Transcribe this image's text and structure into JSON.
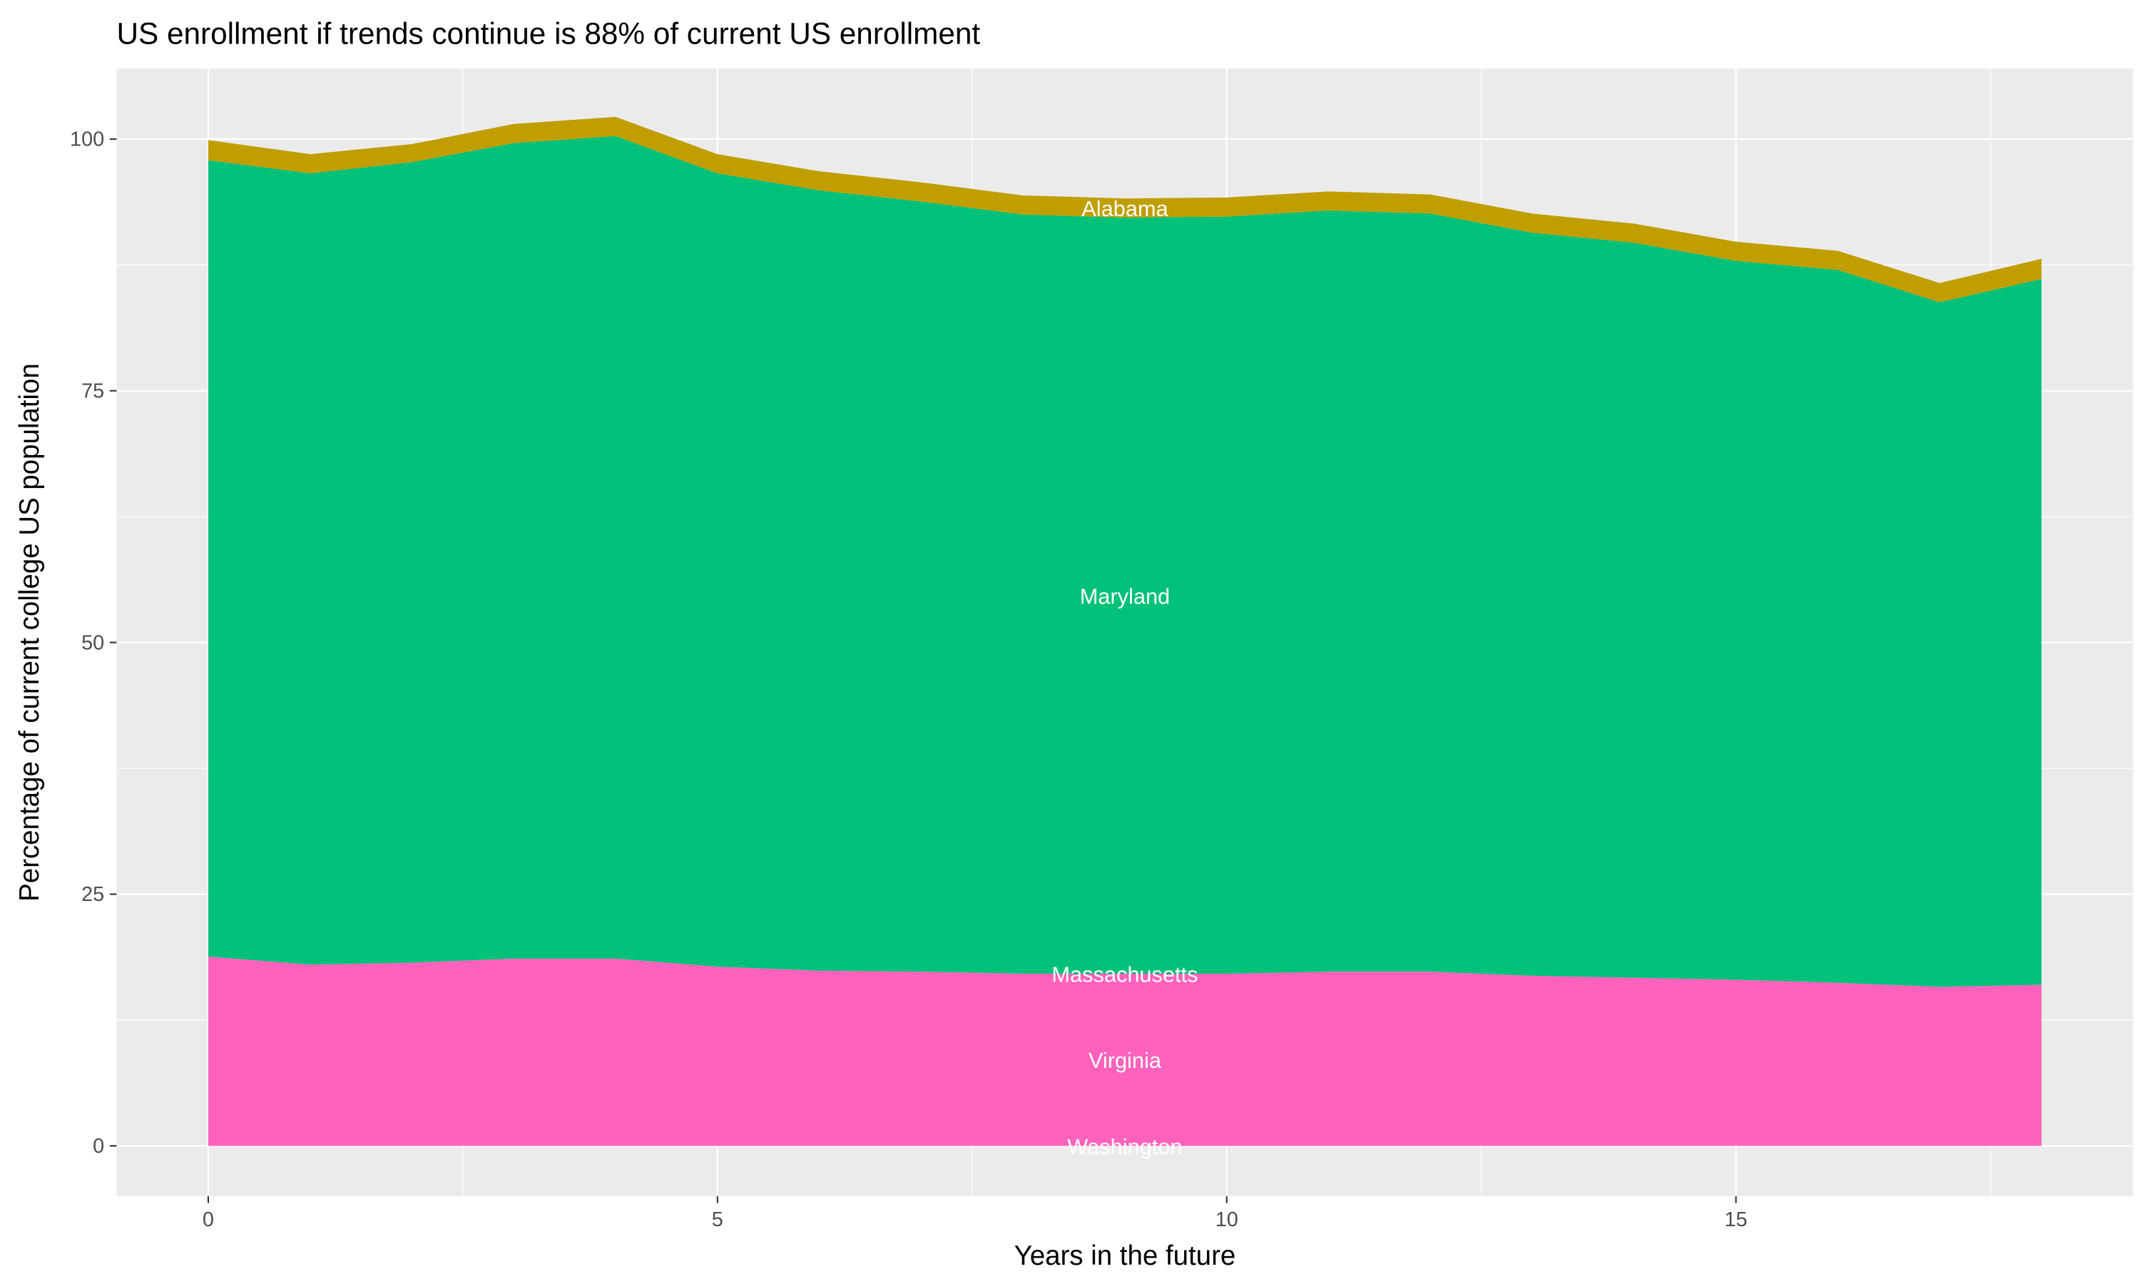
{
  "chart_data": {
    "type": "area",
    "stacked": true,
    "title": "US enrollment if trends continue is 88% of current US enrollment",
    "xlabel": "Years in the future",
    "ylabel": "Percentage of current college US population",
    "x": [
      0,
      1,
      2,
      3,
      4,
      5,
      6,
      7,
      8,
      9,
      10,
      11,
      12,
      13,
      14,
      15,
      16,
      17,
      18
    ],
    "xlim": [
      -0.9,
      18.9
    ],
    "ylim": [
      -5,
      107
    ],
    "xticks": [
      0,
      5,
      10,
      15
    ],
    "yticks": [
      0,
      25,
      50,
      75,
      100
    ],
    "grid": true,
    "legend": "none (labels placed inside areas)",
    "label_x": 9,
    "series": [
      {
        "name": "Washington",
        "color": "#FF62BC",
        "values": [
          0,
          0,
          0,
          0,
          0,
          0,
          0,
          0,
          0,
          0,
          0,
          0,
          0,
          0,
          0,
          0,
          0,
          0,
          0
        ]
      },
      {
        "name": "Virginia",
        "color": "#FF62BC",
        "values": [
          18.8,
          18.0,
          18.2,
          18.6,
          18.6,
          17.8,
          17.4,
          17.3,
          17.1,
          17.1,
          17.1,
          17.3,
          17.3,
          16.9,
          16.7,
          16.5,
          16.2,
          15.8,
          16.0
        ]
      },
      {
        "name": "Massachusetts",
        "color": "#00C17A",
        "values": [
          0,
          0,
          0,
          0,
          0,
          0,
          0,
          0,
          0,
          0,
          0,
          0,
          0,
          0,
          0,
          0,
          0,
          0,
          0
        ]
      },
      {
        "name": "Maryland",
        "color": "#00C17A",
        "values": [
          79.1,
          78.6,
          79.5,
          81.0,
          81.7,
          78.8,
          77.5,
          76.5,
          75.4,
          75.1,
          75.2,
          75.6,
          75.3,
          73.8,
          73.0,
          71.4,
          70.8,
          68.0,
          70.1
        ]
      },
      {
        "name": "Alabama",
        "color": "#C09E00",
        "values": [
          2.0,
          1.9,
          1.8,
          1.9,
          1.9,
          1.9,
          1.9,
          1.9,
          1.9,
          1.9,
          1.9,
          1.9,
          1.9,
          1.9,
          1.9,
          1.9,
          1.9,
          1.9,
          2.0
        ]
      }
    ]
  }
}
